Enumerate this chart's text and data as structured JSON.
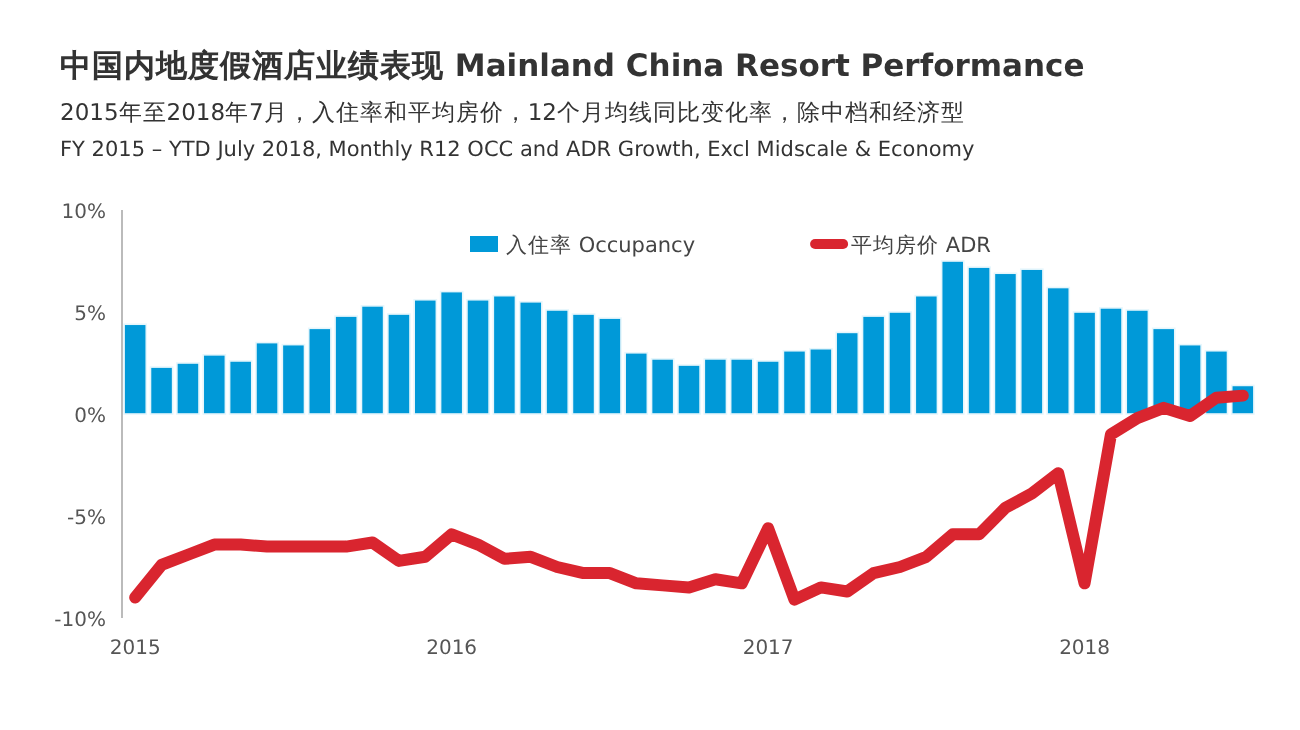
{
  "chart_data": {
    "type": "bar",
    "title": "中国内地度假酒店业绩表现 Mainland China Resort Performance",
    "subtitle": "2015年至2018年7月，入住率和平均房价，12个月均线同比变化率，除中档和经济型",
    "annotations": [
      "FY 2015 – YTD July 2018, Monthly R12 OCC and ADR Growth, Excl Midscale & Economy"
    ],
    "categories": [
      "2015",
      null,
      null,
      null,
      null,
      null,
      null,
      null,
      null,
      null,
      null,
      null,
      "2016",
      null,
      null,
      null,
      null,
      null,
      null,
      null,
      null,
      null,
      null,
      null,
      "2017",
      null,
      null,
      null,
      null,
      null,
      null,
      null,
      null,
      null,
      null,
      null,
      "2018",
      null,
      null,
      null,
      null,
      null,
      null
    ],
    "series": [
      {
        "name": "入住率 Occupancy",
        "color": "#0099d8",
        "values": [
          4.4,
          2.3,
          2.5,
          2.9,
          2.6,
          3.5,
          3.4,
          4.2,
          4.8,
          5.3,
          4.9,
          5.6,
          6.0,
          5.6,
          5.8,
          5.5,
          5.1,
          4.9,
          4.7,
          3.0,
          2.7,
          2.4,
          2.7,
          2.7,
          2.6,
          3.1,
          3.2,
          4.0,
          4.8,
          5.0,
          5.8,
          7.5,
          7.2,
          6.9,
          7.1,
          6.2,
          5.0,
          5.2,
          5.1,
          4.2,
          3.4,
          3.1,
          1.4
        ]
      },
      {
        "name": "平均房价 ADR",
        "type": "line",
        "color": "#d9252f",
        "values": [
          -9.0,
          -7.4,
          -6.9,
          -6.4,
          -6.4,
          -6.5,
          -6.5,
          -6.5,
          -6.5,
          -6.3,
          -7.2,
          -7.0,
          -5.9,
          -6.4,
          -7.1,
          -7.0,
          -7.5,
          -7.8,
          -7.8,
          -8.3,
          -8.4,
          -8.5,
          -8.1,
          -8.3,
          -5.6,
          -9.1,
          -8.5,
          -8.7,
          -7.8,
          -7.5,
          -7.0,
          -5.9,
          -5.9,
          -4.6,
          -3.9,
          -2.9,
          -8.3,
          -1.0,
          -0.2,
          0.3,
          -0.1,
          0.8,
          0.9
        ]
      }
    ],
    "ylim": [
      -10,
      10
    ],
    "yticks": [
      {
        "value": -10,
        "label": "-10%"
      },
      {
        "value": -5,
        "label": "-5%"
      },
      {
        "value": 0,
        "label": "0%"
      },
      {
        "value": 5,
        "label": "5%"
      },
      {
        "value": 10,
        "label": "10%"
      }
    ],
    "legend": "top"
  }
}
